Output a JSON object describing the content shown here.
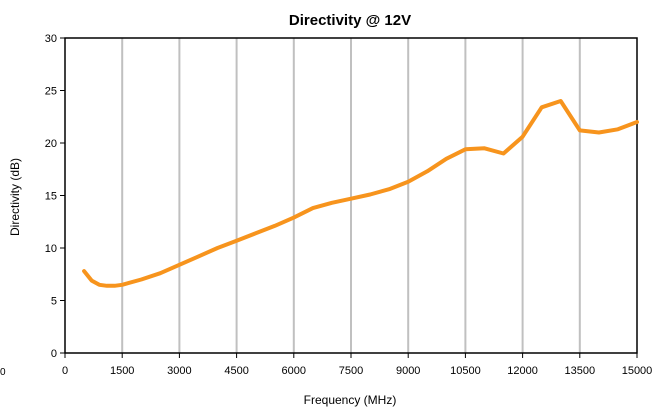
{
  "chart_data": {
    "type": "line",
    "title": "Directivity @ 12V",
    "xlabel": "Frequency (MHz)",
    "ylabel": "Directivity (dB)",
    "xlim": [
      0,
      15000
    ],
    "ylim": [
      0,
      30
    ],
    "x_ticks": [
      0,
      1500,
      3000,
      4500,
      6000,
      7500,
      9000,
      10500,
      12000,
      13500,
      15000
    ],
    "y_ticks": [
      0,
      5,
      10,
      15,
      20,
      25,
      30
    ],
    "x_tick_labels": [
      "0",
      "1500",
      "3000",
      "4500",
      "6000",
      "7500",
      "9000",
      "10500",
      "12000",
      "13500",
      "15000"
    ],
    "y_tick_labels": [
      "0",
      "5",
      "10",
      "15",
      "20",
      "25",
      "30"
    ],
    "grid": "vertical",
    "stray_label": "0",
    "series": [
      {
        "color": "#f7941d",
        "x": [
          500,
          700,
          900,
          1100,
          1300,
          1500,
          2000,
          2500,
          3000,
          3500,
          4000,
          4500,
          5000,
          5500,
          6000,
          6500,
          7000,
          7500,
          8000,
          8500,
          9000,
          9500,
          10000,
          10500,
          11000,
          11500,
          12000,
          12500,
          13000,
          13500,
          14000,
          14500,
          15000
        ],
        "y": [
          7.8,
          6.9,
          6.5,
          6.4,
          6.4,
          6.5,
          7.0,
          7.6,
          8.4,
          9.2,
          10.0,
          10.7,
          11.4,
          12.1,
          12.9,
          13.8,
          14.3,
          14.7,
          15.1,
          15.6,
          16.3,
          17.3,
          18.5,
          19.4,
          19.5,
          19.0,
          20.6,
          23.4,
          24.0,
          21.2,
          21.0,
          21.3,
          22.0
        ]
      }
    ]
  }
}
